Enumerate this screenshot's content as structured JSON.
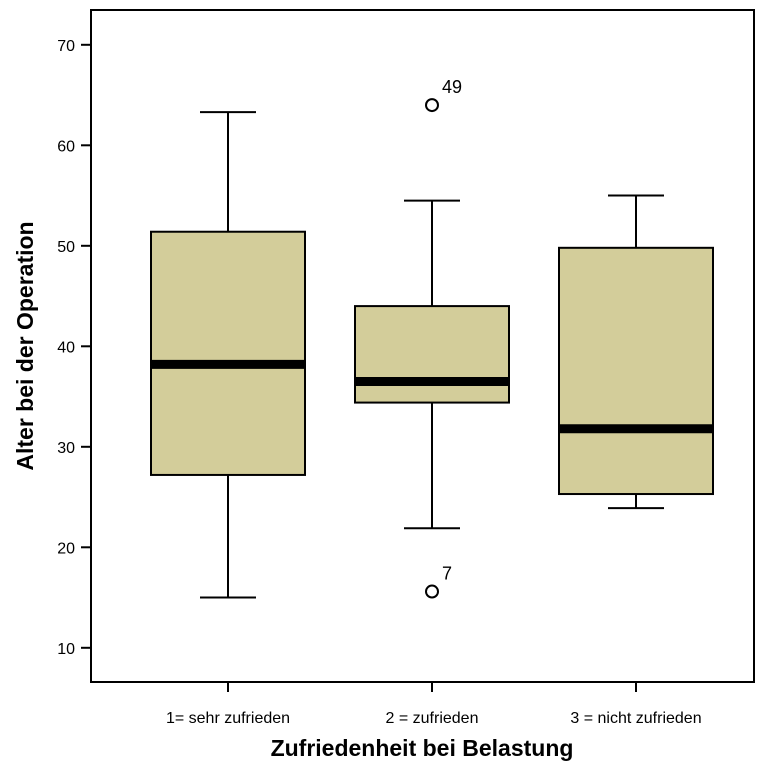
{
  "chart_data": {
    "type": "boxplot",
    "title": "",
    "xlabel": "Zufriedenheit bei Belastung",
    "ylabel": "Alter bei der Operation",
    "ylim": [
      7,
      74
    ],
    "yticks": [
      10,
      20,
      30,
      40,
      50,
      60,
      70
    ],
    "categories": [
      "1= sehr zufrieden",
      "2 = zufrieden",
      "3 = nicht zufrieden"
    ],
    "boxes": [
      {
        "category": "1= sehr zufrieden",
        "whisker_low": 15,
        "q1": 27.2,
        "median": 38.2,
        "q3": 51.4,
        "whisker_high": 63.3,
        "outliers": []
      },
      {
        "category": "2 = zufrieden",
        "whisker_low": 21.9,
        "q1": 34.4,
        "median": 36.5,
        "q3": 44,
        "whisker_high": 54.5,
        "outliers": [
          {
            "value": 64,
            "label": "49"
          },
          {
            "value": 15.6,
            "label": "7"
          }
        ]
      },
      {
        "category": "3 = nicht zufrieden",
        "whisker_low": 23.9,
        "q1": 25.3,
        "median": 31.8,
        "q3": 49.8,
        "whisker_high": 55,
        "outliers": []
      }
    ],
    "grid": false,
    "legend": "none",
    "colors": {
      "box_fill": "#d3cd9a",
      "line": "#000000",
      "background": "#ffffff"
    }
  }
}
